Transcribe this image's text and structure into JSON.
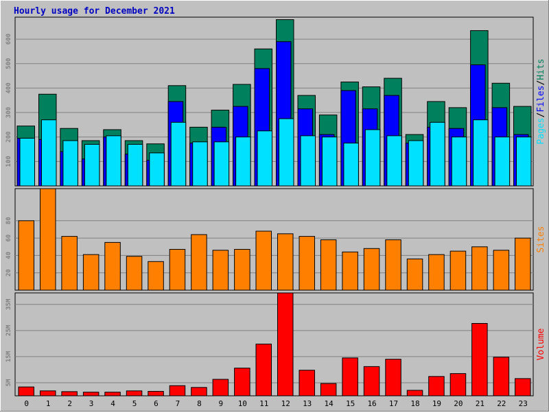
{
  "title": "Hourly usage for December 2021",
  "colors": {
    "title": "#0000c0",
    "background": "#c0c0c0",
    "frame_light": "#ffffff",
    "frame_dark": "#808080",
    "grid": "#808080",
    "tick_label": "#808080",
    "hits": "#00805c",
    "files": "#0000ff",
    "pages": "#00e0ff",
    "sites": "#ff8000",
    "volume": "#ff0000"
  },
  "x_labels": [
    "0",
    "1",
    "2",
    "3",
    "4",
    "5",
    "6",
    "7",
    "8",
    "9",
    "10",
    "11",
    "12",
    "13",
    "14",
    "15",
    "16",
    "17",
    "18",
    "19",
    "20",
    "21",
    "22",
    "23"
  ],
  "chart_data": [
    {
      "type": "bar",
      "panel": "hits-files-pages",
      "categories": [
        "0",
        "1",
        "2",
        "3",
        "4",
        "5",
        "6",
        "7",
        "8",
        "9",
        "10",
        "11",
        "12",
        "13",
        "14",
        "15",
        "16",
        "17",
        "18",
        "19",
        "20",
        "21",
        "22",
        "23"
      ],
      "series": [
        {
          "name": "Hits",
          "color": "#00805c",
          "values": [
            245,
            375,
            235,
            185,
            230,
            185,
            172,
            410,
            240,
            310,
            415,
            560,
            680,
            370,
            290,
            425,
            405,
            440,
            210,
            345,
            320,
            635,
            420,
            325
          ]
        },
        {
          "name": "Files",
          "color": "#0000ff",
          "values": [
            195,
            190,
            140,
            110,
            200,
            130,
            105,
            345,
            175,
            240,
            325,
            480,
            590,
            315,
            210,
            390,
            315,
            370,
            175,
            240,
            235,
            495,
            320,
            210
          ]
        },
        {
          "name": "Pages",
          "color": "#00e0ff",
          "values": [
            195,
            270,
            185,
            170,
            205,
            170,
            135,
            260,
            180,
            180,
            200,
            225,
            275,
            205,
            200,
            175,
            230,
            205,
            185,
            260,
            200,
            270,
            200,
            200
          ]
        }
      ],
      "y_ticks": [
        "100",
        "200",
        "300",
        "400",
        "500",
        "600"
      ],
      "ylim": [
        0,
        690
      ],
      "legend": [
        "Pages",
        "/",
        "Files",
        "/",
        "Hits"
      ],
      "legend_placement": "right-vertical",
      "grid": true
    },
    {
      "type": "bar",
      "panel": "sites",
      "categories": [
        "0",
        "1",
        "2",
        "3",
        "4",
        "5",
        "6",
        "7",
        "8",
        "9",
        "10",
        "11",
        "12",
        "13",
        "14",
        "15",
        "16",
        "17",
        "18",
        "19",
        "20",
        "21",
        "22",
        "23"
      ],
      "series": [
        {
          "name": "Sites",
          "color": "#ff8000",
          "values": [
            80,
            117,
            62,
            41,
            55,
            39,
            33,
            47,
            64,
            46,
            47,
            68,
            65,
            62,
            58,
            44,
            48,
            58,
            36,
            41,
            45,
            50,
            46,
            60
          ]
        }
      ],
      "y_ticks": [
        "20",
        "40",
        "60",
        "80"
      ],
      "ylim": [
        0,
        117
      ],
      "legend": [
        "Sites"
      ],
      "legend_placement": "right-vertical",
      "grid": true
    },
    {
      "type": "bar",
      "panel": "volume",
      "categories": [
        "0",
        "1",
        "2",
        "3",
        "4",
        "5",
        "6",
        "7",
        "8",
        "9",
        "10",
        "11",
        "12",
        "13",
        "14",
        "15",
        "16",
        "17",
        "18",
        "19",
        "20",
        "21",
        "22",
        "23"
      ],
      "series": [
        {
          "name": "Volume",
          "color": "#ff0000",
          "values": [
            3.4,
            1.9,
            1.6,
            1.4,
            1.4,
            1.9,
            1.7,
            3.9,
            3.2,
            6.3,
            10.6,
            19.8,
            39.4,
            9.8,
            4.7,
            14.5,
            11.2,
            14.0,
            2.1,
            7.4,
            8.5,
            27.7,
            14.8,
            6.6
          ]
        }
      ],
      "y_ticks": [
        "5M",
        "15M",
        "25M",
        "35M"
      ],
      "ylim": [
        0,
        39.4
      ],
      "legend": [
        "Volume"
      ],
      "legend_placement": "right-vertical",
      "grid": true
    }
  ]
}
